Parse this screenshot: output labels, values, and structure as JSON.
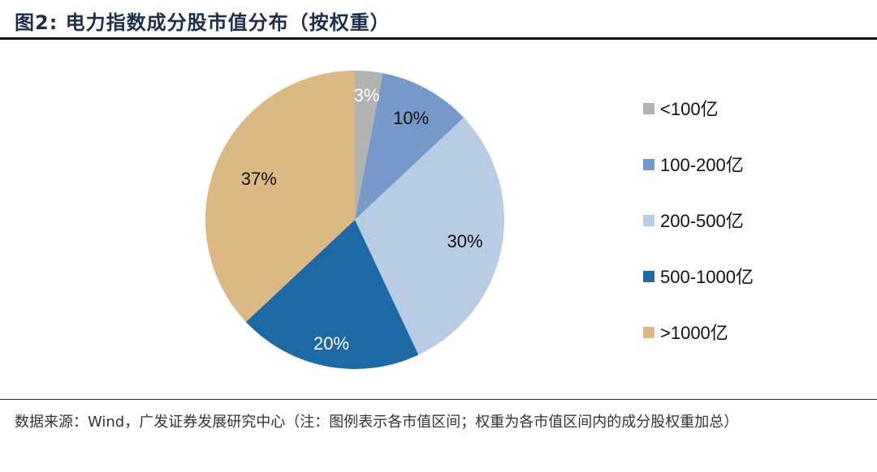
{
  "title": "图2:  电力指数成分股市值分布（按权重）",
  "footer": "数据来源：Wind，广发证券发展研究中心（注：图例表示各市值区间；权重为各市值区间内的成分股权重加总）",
  "chart_data": {
    "type": "pie",
    "title": "电力指数成分股市值分布（按权重）",
    "legend_position": "right",
    "start_angle": "top, clockwise",
    "categories": [
      "<100亿",
      "100-200亿",
      "200-500亿",
      "500-1000亿",
      ">1000亿"
    ],
    "values": [
      3,
      10,
      30,
      20,
      37
    ],
    "labels": [
      "3%",
      "10%",
      "30%",
      "20%",
      "37%"
    ],
    "colors": [
      "#b2b2b2",
      "#7599c8",
      "#b8cde4",
      "#1c69a6",
      "#dbb884"
    ],
    "label_colors": [
      "#ffffff",
      "#111111",
      "#111111",
      "#ffffff",
      "#111111"
    ]
  }
}
